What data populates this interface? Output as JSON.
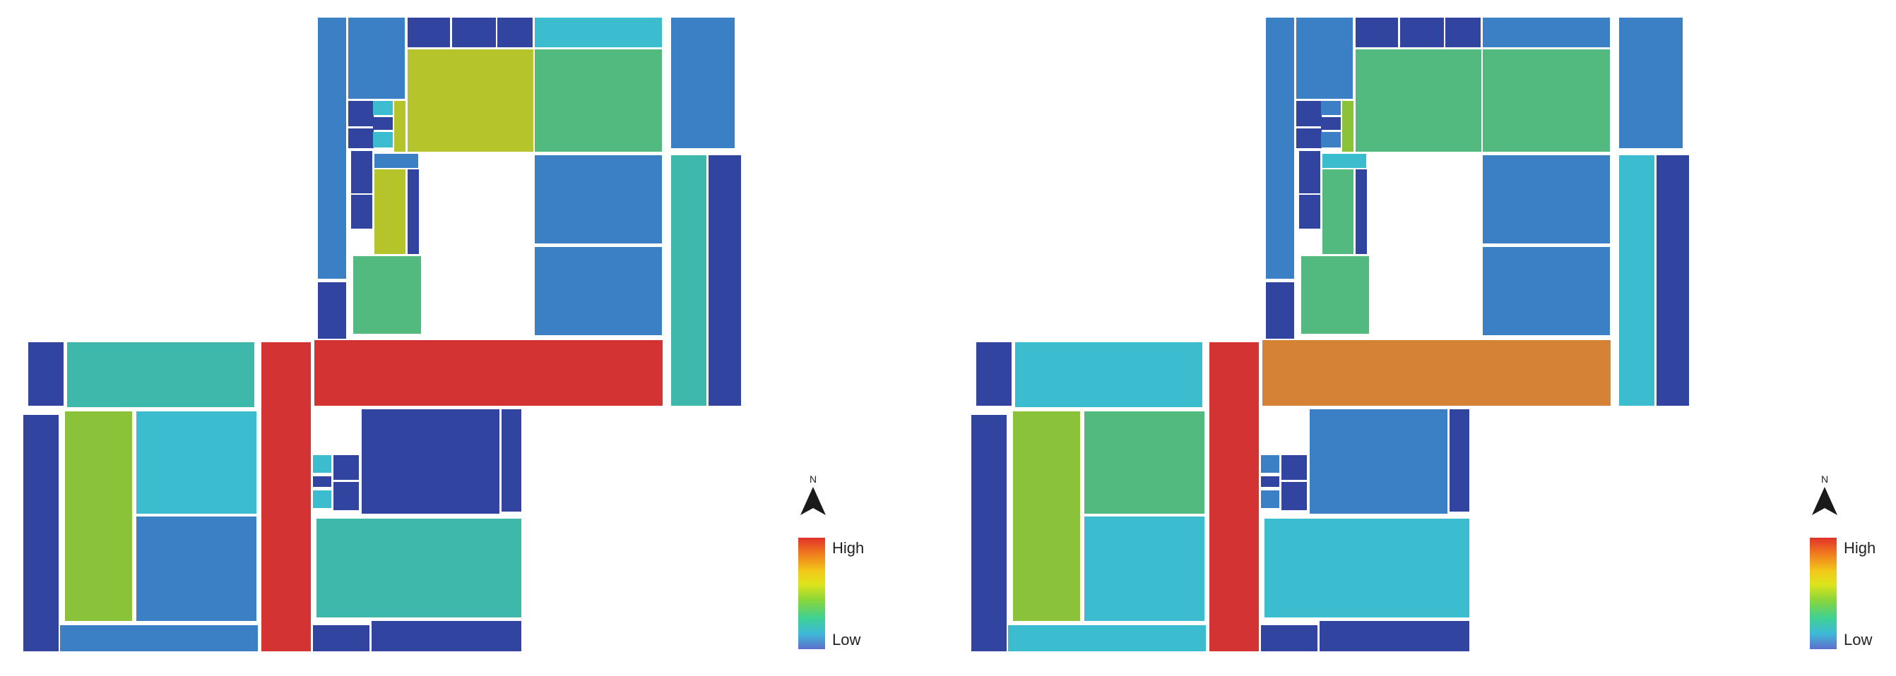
{
  "legend": {
    "high_label": "High",
    "low_label": "Low"
  },
  "north_label": "N",
  "colors": {
    "dark_blue": "#3144a0",
    "mid_blue": "#3b7fc4",
    "cyan": "#3bbdcf",
    "teal": "#3fb8ac",
    "green": "#52b97f",
    "lime": "#8ac23a",
    "yellow_green": "#b6c42c",
    "orange": "#d58136",
    "red": "#d33333"
  },
  "plans": [
    {
      "id": "plan-left",
      "rooms": [
        {
          "c": "mid_blue"
        },
        {
          "c": "mid_blue"
        },
        {
          "c": "dark_blue"
        },
        {
          "c": "dark_blue"
        },
        {
          "c": "dark_blue"
        },
        {
          "c": "cyan"
        },
        {
          "c": "mid_blue"
        },
        {
          "c": "dark_blue"
        },
        {
          "c": "dark_blue"
        },
        {
          "c": "cyan"
        },
        {
          "c": "dark_blue"
        },
        {
          "c": "cyan"
        },
        {
          "c": "yellow_green"
        },
        {
          "c": "yellow_green"
        },
        {
          "c": "green"
        },
        {
          "c": "mid_blue"
        },
        {
          "c": "dark_blue"
        },
        {
          "c": "dark_blue"
        },
        {
          "c": "yellow_green"
        },
        {
          "c": "dark_blue"
        },
        {
          "c": "mid_blue"
        },
        {
          "c": "mid_blue"
        },
        {
          "c": "green"
        },
        {
          "c": "dark_blue"
        },
        {
          "c": "teal"
        },
        {
          "c": "dark_blue"
        },
        {
          "c": "dark_blue"
        },
        {
          "c": "teal"
        },
        {
          "c": "red"
        },
        {
          "c": "red"
        },
        {
          "c": "dark_blue"
        },
        {
          "c": "lime"
        },
        {
          "c": "cyan"
        },
        {
          "c": "mid_blue"
        },
        {
          "c": "mid_blue"
        },
        {
          "c": "cyan"
        },
        {
          "c": "dark_blue"
        },
        {
          "c": "dark_blue"
        },
        {
          "c": "cyan"
        },
        {
          "c": "dark_blue"
        },
        {
          "c": "dark_blue"
        },
        {
          "c": "dark_blue"
        },
        {
          "c": "teal"
        },
        {
          "c": "dark_blue"
        },
        {
          "c": "dark_blue"
        }
      ]
    },
    {
      "id": "plan-right",
      "rooms": [
        {
          "c": "mid_blue"
        },
        {
          "c": "mid_blue"
        },
        {
          "c": "dark_blue"
        },
        {
          "c": "dark_blue"
        },
        {
          "c": "dark_blue"
        },
        {
          "c": "mid_blue"
        },
        {
          "c": "mid_blue"
        },
        {
          "c": "dark_blue"
        },
        {
          "c": "dark_blue"
        },
        {
          "c": "mid_blue"
        },
        {
          "c": "dark_blue"
        },
        {
          "c": "mid_blue"
        },
        {
          "c": "lime"
        },
        {
          "c": "green"
        },
        {
          "c": "green"
        },
        {
          "c": "cyan"
        },
        {
          "c": "dark_blue"
        },
        {
          "c": "dark_blue"
        },
        {
          "c": "green"
        },
        {
          "c": "dark_blue"
        },
        {
          "c": "mid_blue"
        },
        {
          "c": "mid_blue"
        },
        {
          "c": "green"
        },
        {
          "c": "dark_blue"
        },
        {
          "c": "cyan"
        },
        {
          "c": "dark_blue"
        },
        {
          "c": "dark_blue"
        },
        {
          "c": "cyan"
        },
        {
          "c": "red"
        },
        {
          "c": "orange"
        },
        {
          "c": "dark_blue"
        },
        {
          "c": "lime"
        },
        {
          "c": "green"
        },
        {
          "c": "cyan"
        },
        {
          "c": "cyan"
        },
        {
          "c": "mid_blue"
        },
        {
          "c": "dark_blue"
        },
        {
          "c": "dark_blue"
        },
        {
          "c": "mid_blue"
        },
        {
          "c": "dark_blue"
        },
        {
          "c": "mid_blue"
        },
        {
          "c": "dark_blue"
        },
        {
          "c": "cyan"
        },
        {
          "c": "dark_blue"
        },
        {
          "c": "dark_blue"
        }
      ]
    }
  ]
}
